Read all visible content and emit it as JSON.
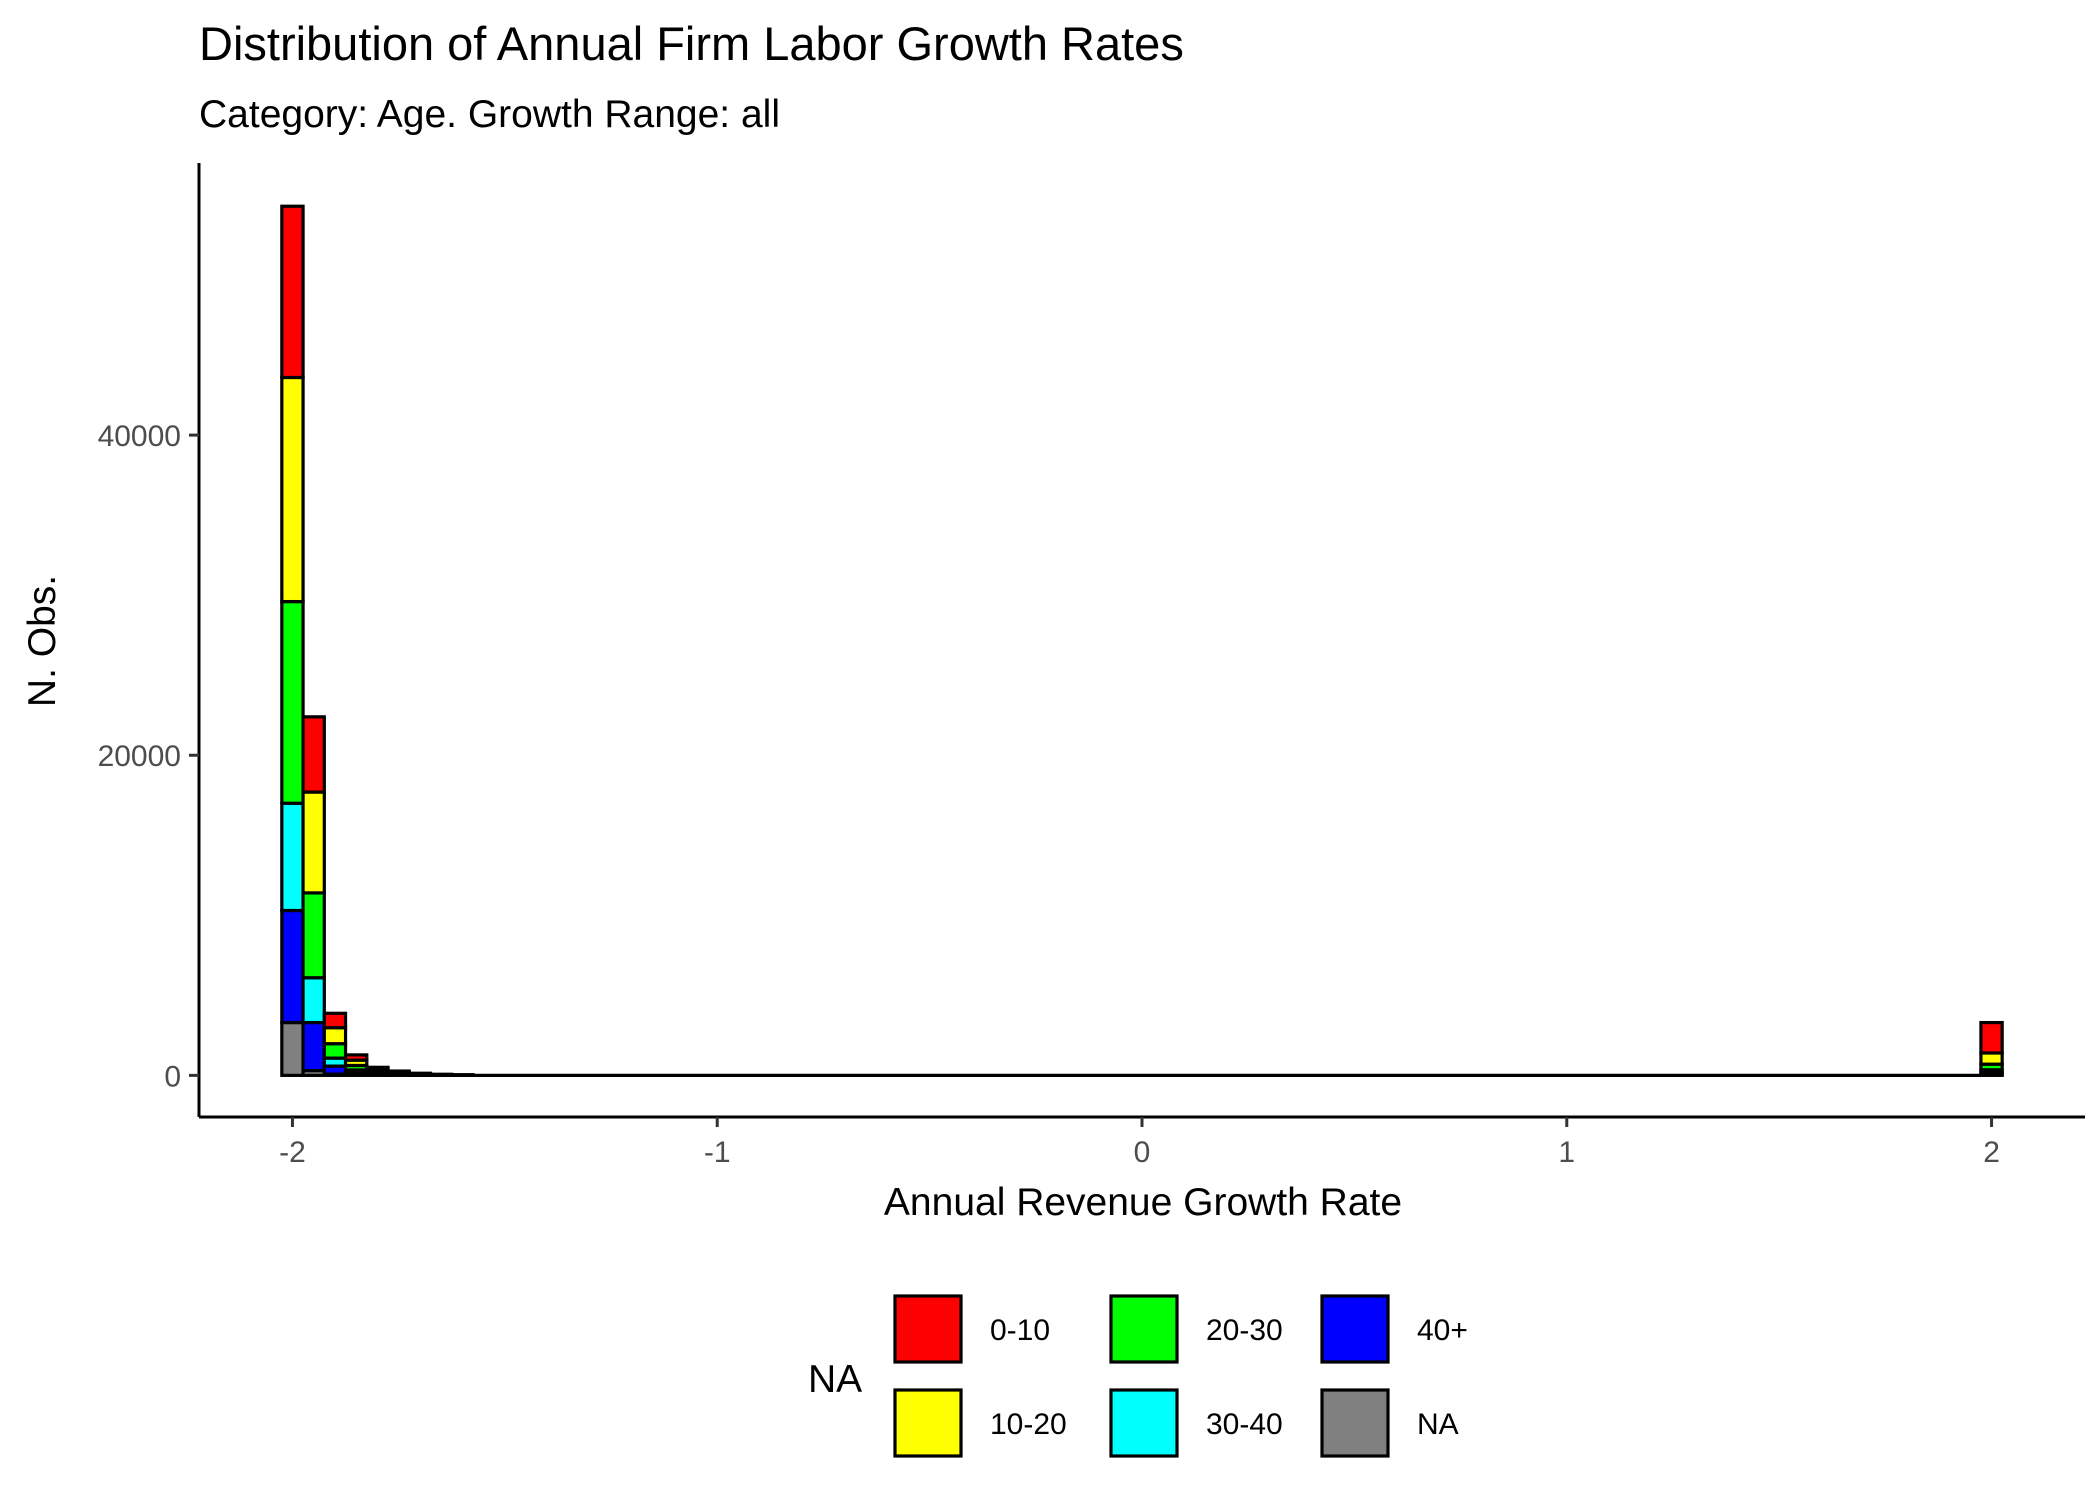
{
  "chart_data": {
    "type": "bar",
    "subtype": "stacked-histogram",
    "title": "Distribution of Annual Firm Labor Growth Rates",
    "subtitle": "Category: Age. Growth Range: all",
    "xlabel": "Annual Revenue Growth Rate",
    "ylabel": "N. Obs.",
    "xlim": [
      -2.22,
      2.22
    ],
    "ylim": [
      -2600,
      57000
    ],
    "x_ticks": [
      -2,
      -1,
      0,
      1,
      2
    ],
    "x_tick_labels": [
      "-2",
      "-1",
      "0",
      "1",
      "2"
    ],
    "y_ticks": [
      0,
      20000,
      40000
    ],
    "y_tick_labels": [
      "0",
      "20000",
      "40000"
    ],
    "bin_width": 0.05,
    "grid": false,
    "legend_position": "bottom",
    "legend_title": "NA",
    "series": [
      {
        "name": "0-10",
        "color": "#ff0000"
      },
      {
        "name": "10-20",
        "color": "#ffff00"
      },
      {
        "name": "20-30",
        "color": "#00ff00"
      },
      {
        "name": "30-40",
        "color": "#00ffff"
      },
      {
        "name": "40+",
        "color": "#0000ff"
      },
      {
        "name": "NA",
        "color": "#808080"
      }
    ],
    "stack_order_bottom_to_top": [
      "NA",
      "40+",
      "30-40",
      "20-30",
      "10-20",
      "0-10"
    ],
    "bins": [
      {
        "x": -2.0,
        "counts": {
          "NA": 3300,
          "40+": 7000,
          "30-40": 6700,
          "20-30": 12600,
          "10-20": 14000,
          "0-10": 10700
        }
      },
      {
        "x": -1.95,
        "counts": {
          "NA": 300,
          "40+": 3000,
          "30-40": 2800,
          "20-30": 5300,
          "10-20": 6300,
          "0-10": 4700
        }
      },
      {
        "x": -1.9,
        "counts": {
          "NA": 80,
          "40+": 500,
          "30-40": 500,
          "20-30": 900,
          "10-20": 1000,
          "0-10": 900
        }
      },
      {
        "x": -1.85,
        "counts": {
          "NA": 30,
          "40+": 160,
          "30-40": 150,
          "20-30": 280,
          "10-20": 330,
          "0-10": 330
        }
      },
      {
        "x": -1.8,
        "counts": {
          "NA": 15,
          "40+": 60,
          "30-40": 60,
          "20-30": 110,
          "10-20": 130,
          "0-10": 130
        }
      },
      {
        "x": -1.75,
        "counts": {
          "NA": 10,
          "40+": 30,
          "30-40": 30,
          "20-30": 60,
          "10-20": 70,
          "0-10": 70
        }
      },
      {
        "x": -1.7,
        "counts": {
          "NA": 5,
          "40+": 15,
          "30-40": 15,
          "20-30": 30,
          "10-20": 35,
          "0-10": 35
        }
      },
      {
        "x": -1.65,
        "counts": {
          "NA": 3,
          "40+": 8,
          "30-40": 8,
          "20-30": 15,
          "10-20": 18,
          "0-10": 18
        }
      },
      {
        "x": -1.6,
        "counts": {
          "NA": 2,
          "40+": 5,
          "30-40": 5,
          "20-30": 8,
          "10-20": 10,
          "0-10": 10
        }
      },
      {
        "x": 2.0,
        "counts": {
          "NA": 50,
          "40+": 150,
          "30-40": 150,
          "20-30": 350,
          "10-20": 700,
          "0-10": 1900
        }
      }
    ]
  }
}
